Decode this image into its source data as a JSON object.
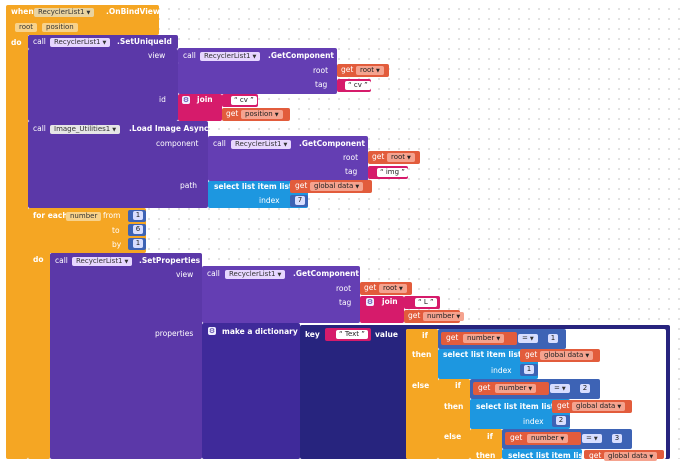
{
  "canvas": {
    "background": "#ffffff"
  },
  "colors": {
    "event": "#f5a623",
    "component": "#5b38a8",
    "get": "#e25c3c",
    "text": "#d61b6b",
    "list": "#1d97e0",
    "control": "#f5a623",
    "math": "#3d63b5",
    "dict": "#3f2a9a"
  },
  "event": {
    "when": "when",
    "component": "RecyclerList1",
    "event": ".OnBindView",
    "param1": "root",
    "param2": "position",
    "do": "do"
  },
  "setUniqueId": {
    "call": "call",
    "component": "RecyclerList1",
    "method": ".SetUniqueId",
    "view_label": "view",
    "id_label": "id"
  },
  "getComponent1": {
    "call": "call",
    "component": "RecyclerList1",
    "method": ".GetComponent",
    "root_label": "root",
    "tag_label": "tag",
    "get": "get",
    "root_var": "root",
    "tag_value": "cv"
  },
  "join1": {
    "join": "join",
    "str": "cv",
    "get": "get",
    "var": "position"
  },
  "loadImage": {
    "call": "call",
    "component": "Image_Utilities1",
    "method": ".Load Image Async",
    "component_label": "component",
    "path_label": "path"
  },
  "getComponent2": {
    "call": "call",
    "component": "RecyclerList1",
    "method": ".GetComponent",
    "root_label": "root",
    "tag_label": "tag",
    "get": "get",
    "root_var": "root",
    "tag_value": "img"
  },
  "selectList1": {
    "label": "select list item  list",
    "get": "get",
    "var": "global data",
    "index_label": "index",
    "index": "7"
  },
  "forEach": {
    "label": "for each",
    "var": "number",
    "from_label": "from",
    "from": "1",
    "to_label": "to",
    "to": "6",
    "by_label": "by",
    "by": "1",
    "do": "do"
  },
  "setProps": {
    "call": "call",
    "component": "RecyclerList1",
    "method": ".SetProperties",
    "view_label": "view",
    "props_label": "properties"
  },
  "getComponent3": {
    "call": "call",
    "component": "RecyclerList1",
    "method": ".GetComponent",
    "root_label": "root",
    "tag_label": "tag",
    "get": "get",
    "root_var": "root"
  },
  "join2": {
    "join": "join",
    "str": "L",
    "get": "get",
    "var": "number"
  },
  "dict": {
    "label": "make a dictionary",
    "key_label": "key",
    "key": "Text",
    "value_label": "value"
  },
  "if1": {
    "if": "if",
    "then": "then",
    "else": "else",
    "get": "get",
    "var": "number",
    "op": "=",
    "val": "1",
    "select": "select list item  list",
    "list_var": "global data",
    "index_label": "index",
    "index": "1"
  },
  "if2": {
    "if": "if",
    "then": "then",
    "else": "else",
    "get": "get",
    "var": "number",
    "op": "=",
    "val": "2",
    "select": "select list item  list",
    "list_var": "global data",
    "index_label": "index",
    "index": "2"
  },
  "if3": {
    "if": "if",
    "then": "then",
    "get": "get",
    "var": "number",
    "op": "=",
    "val": "3",
    "select": "select list item  list",
    "list_var": "global data"
  }
}
